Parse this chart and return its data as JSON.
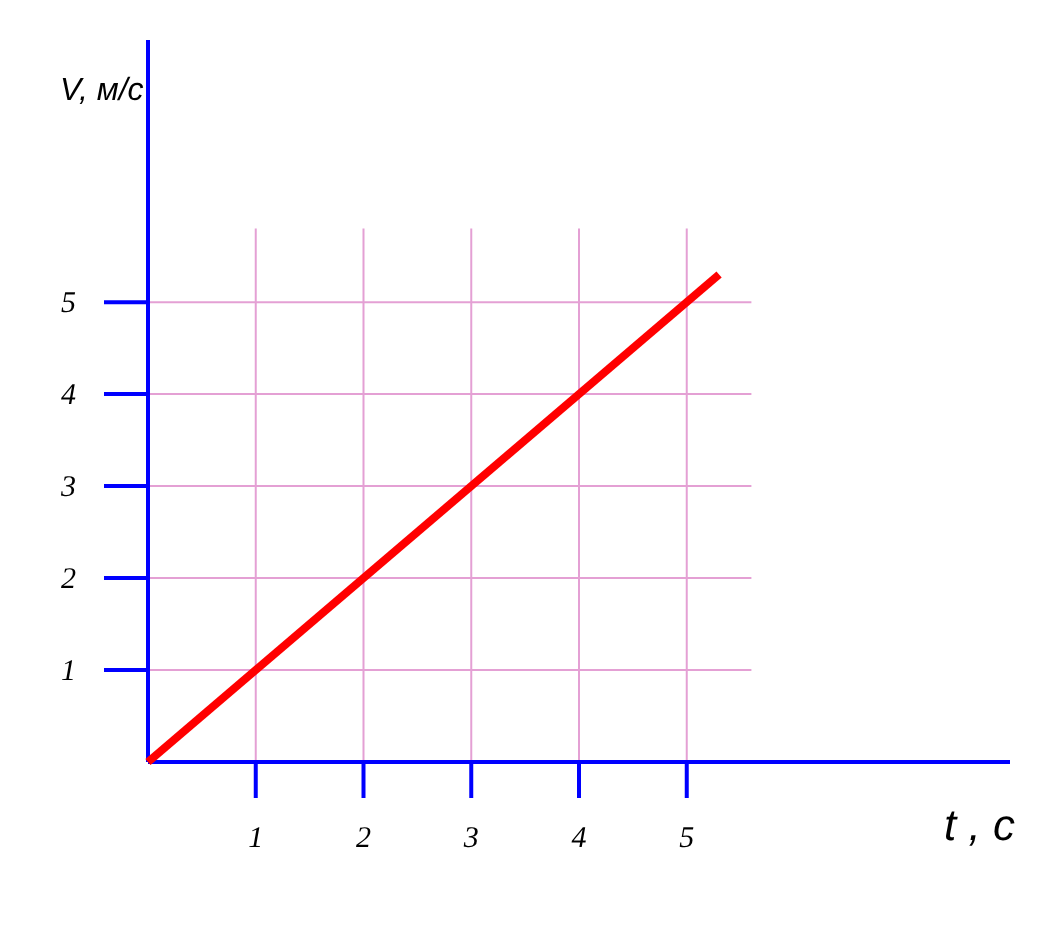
{
  "chart_data": {
    "type": "line",
    "xlabel": "t , c",
    "ylabel": "V, м/с",
    "x": [
      0,
      5.3
    ],
    "series": [
      {
        "color": "#ff0000",
        "values": [
          0,
          5.3
        ]
      }
    ],
    "xlim": [
      0,
      8
    ],
    "ylim": [
      0,
      7.85
    ],
    "xticks": [
      1,
      2,
      3,
      4,
      5
    ],
    "yticks": [
      1,
      2,
      3,
      4,
      5
    ],
    "grid": true,
    "marker": "none",
    "line_style": "solid"
  }
}
